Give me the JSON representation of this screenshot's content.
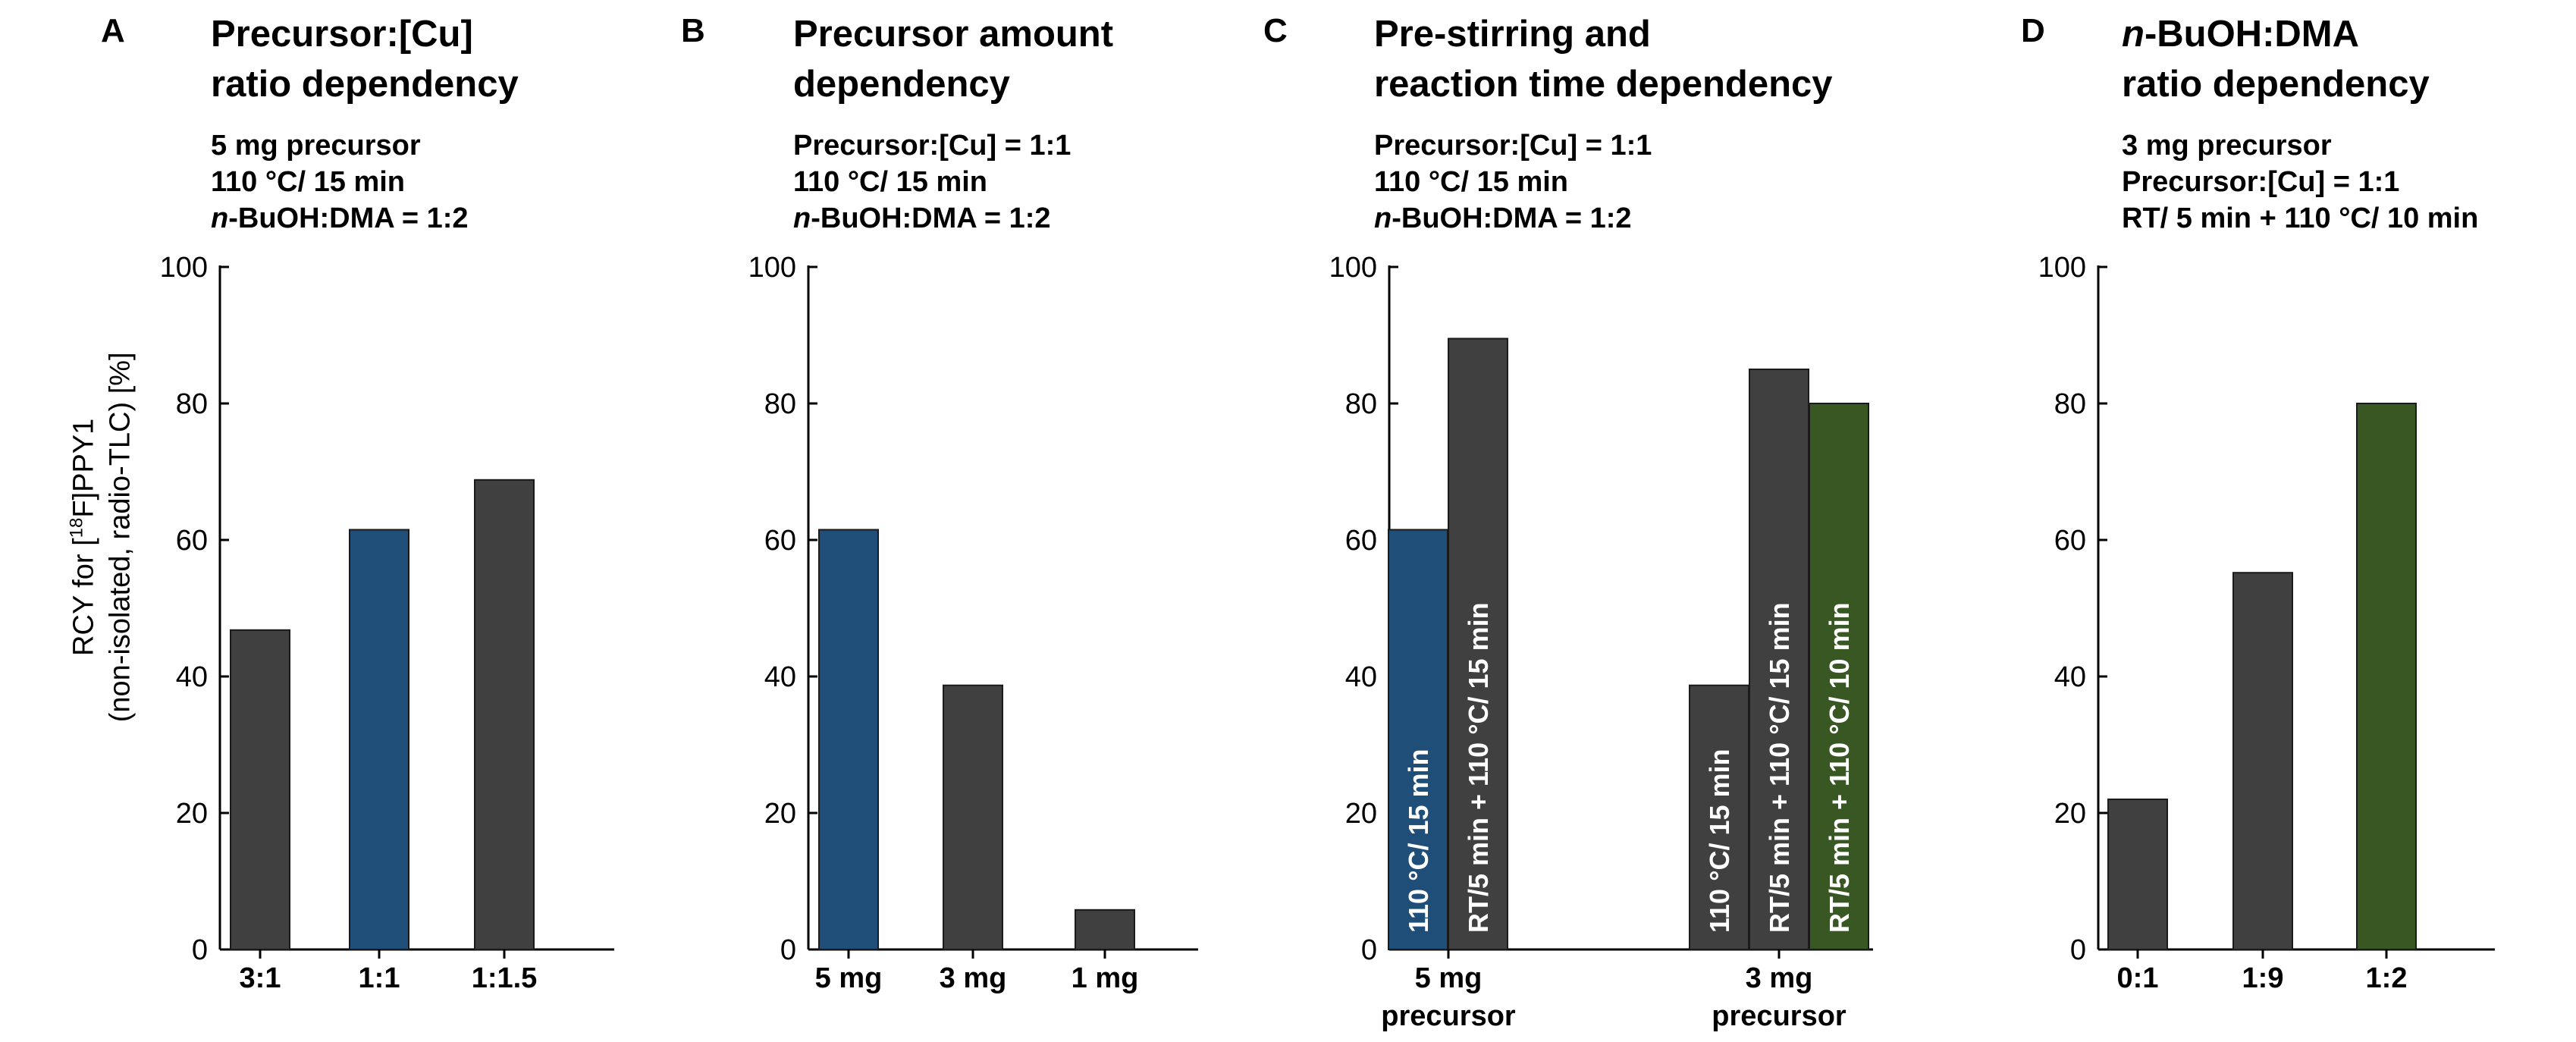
{
  "y_axis_title": {
    "line1_pre": "RCY for [",
    "line1_sup": "18",
    "line1_post": "F]PPY1",
    "line2": "(non-isolated, radio-TLC) [%]"
  },
  "colors": {
    "gray": "#404040",
    "blue": "#1f4e79",
    "green": "#385723",
    "label_text": "#ffffff"
  },
  "panels": [
    {
      "letter": "A",
      "title": "Precursor:[Cu]\nratio dependency",
      "cond": {
        "line1": "5 mg precursor",
        "line2": "110 °C/ 15 min",
        "line3_em": "n",
        "line3": "-BuOH:DMA = 1:2"
      }
    },
    {
      "letter": "B",
      "title": "Precursor amount\ndependency",
      "cond": {
        "line1": "Precursor:[Cu] = 1:1",
        "line2": "110 °C/ 15 min",
        "line3_em": "n",
        "line3": "-BuOH:DMA = 1:2"
      }
    },
    {
      "letter": "C",
      "title": "Pre-stirring and\nreaction time dependency",
      "cond": {
        "line1": "Precursor:[Cu] = 1:1",
        "line2": "110 °C/ 15 min",
        "line3_em": "n",
        "line3": "-BuOH:DMA = 1:2"
      }
    },
    {
      "letter": "D",
      "title_em": "n",
      "title_rest": "-BuOH:DMA",
      "title_line2": "ratio dependency",
      "cond": {
        "line1": "3 mg precursor",
        "line2": "Precursor:[Cu] = 1:1",
        "line3": "RT/ 5 min + 110 °C/ 10 min"
      }
    }
  ],
  "chart_data": [
    {
      "type": "bar",
      "panel": "A",
      "categories": [
        "3:1",
        "1:1",
        "1:1.5"
      ],
      "values": [
        46.8,
        61.5,
        68.8
      ],
      "colors": [
        "gray",
        "blue",
        "gray"
      ],
      "ylim": [
        0,
        100
      ],
      "yticks": [
        "0",
        "20",
        "40",
        "60",
        "80",
        "100"
      ],
      "ylabel": "RCY for [18F]PPY1 (non-isolated, radio-TLC) [%]"
    },
    {
      "type": "bar",
      "panel": "B",
      "categories": [
        "5 mg",
        "3 mg",
        "1 mg"
      ],
      "values": [
        61.5,
        38.7,
        5.8
      ],
      "colors": [
        "blue",
        "gray",
        "gray"
      ],
      "ylim": [
        0,
        100
      ],
      "yticks": [
        "0",
        "20",
        "40",
        "60",
        "80",
        "100"
      ]
    },
    {
      "type": "bar",
      "panel": "C",
      "groups": [
        {
          "label_line1": "5 mg",
          "label_line2": "precursor",
          "bars": [
            {
              "value": 61.5,
              "color": "blue",
              "label": "110 °C/ 15 min"
            },
            {
              "value": 89.5,
              "color": "gray",
              "label": "RT/5 min + 110 °C/ 15 min"
            }
          ]
        },
        {
          "label_line1": "3 mg",
          "label_line2": "precursor",
          "bars": [
            {
              "value": 38.7,
              "color": "gray",
              "label": "110 °C/ 15 min"
            },
            {
              "value": 85.0,
              "color": "gray",
              "label": "RT/5 min + 110 °C/ 15 min"
            },
            {
              "value": 80.0,
              "color": "green",
              "label": "RT/5 min + 110 °C/ 10 min"
            }
          ]
        }
      ],
      "ylim": [
        0,
        100
      ],
      "yticks": [
        "0",
        "20",
        "40",
        "60",
        "80",
        "100"
      ]
    },
    {
      "type": "bar",
      "panel": "D",
      "categories": [
        "0:1",
        "1:9",
        "1:2"
      ],
      "values": [
        22.0,
        55.2,
        80.0
      ],
      "colors": [
        "gray",
        "gray",
        "green"
      ],
      "ylim": [
        0,
        100
      ],
      "yticks": [
        "0",
        "20",
        "40",
        "60",
        "80",
        "100"
      ]
    }
  ]
}
